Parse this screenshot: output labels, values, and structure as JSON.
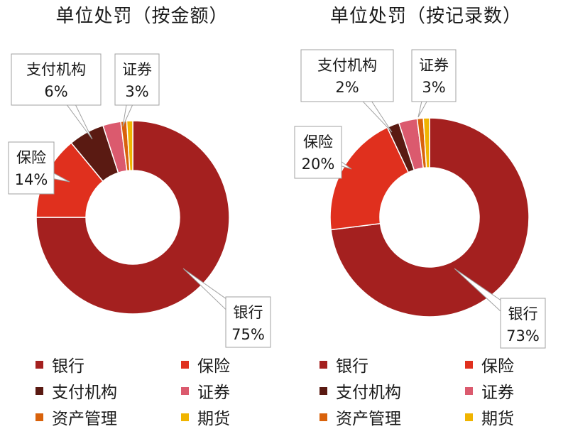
{
  "chart_data": [
    {
      "type": "donut",
      "title": "单位处罚（按金额）",
      "categories": [
        "银行",
        "保险",
        "支付机构",
        "证券",
        "资产管理",
        "期货"
      ],
      "values": [
        75,
        14,
        6,
        3,
        1,
        1
      ],
      "data_labels": [
        {
          "category": "银行",
          "name": "银行",
          "value": "75%"
        },
        {
          "category": "保险",
          "name": "保险",
          "value": "14%"
        },
        {
          "category": "支付机构",
          "name": "支付机构",
          "value": "6%"
        },
        {
          "category": "证券",
          "name": "证券",
          "value": "3%"
        }
      ],
      "legend": [
        "银行",
        "保险",
        "支付机构",
        "证券",
        "资产管理",
        "期货"
      ],
      "legend_position": "bottom"
    },
    {
      "type": "donut",
      "title": "单位处罚（按记录数）",
      "categories": [
        "银行",
        "保险",
        "支付机构",
        "证券",
        "资产管理",
        "期货"
      ],
      "values": [
        73,
        20,
        2,
        3,
        1,
        1
      ],
      "data_labels": [
        {
          "category": "银行",
          "name": "银行",
          "value": "73%"
        },
        {
          "category": "保险",
          "name": "保险",
          "value": "20%"
        },
        {
          "category": "支付机构",
          "name": "支付机构",
          "value": "2%"
        },
        {
          "category": "证券",
          "name": "证券",
          "value": "3%"
        }
      ],
      "legend": [
        "银行",
        "保险",
        "支付机构",
        "证券",
        "资产管理",
        "期货"
      ],
      "legend_position": "bottom"
    }
  ],
  "colors": {
    "银行": "#A4201F",
    "保险": "#E0301E",
    "支付机构": "#5A1A12",
    "证券": "#DB5A6E",
    "资产管理": "#D9620B",
    "期货": "#F0B400"
  }
}
